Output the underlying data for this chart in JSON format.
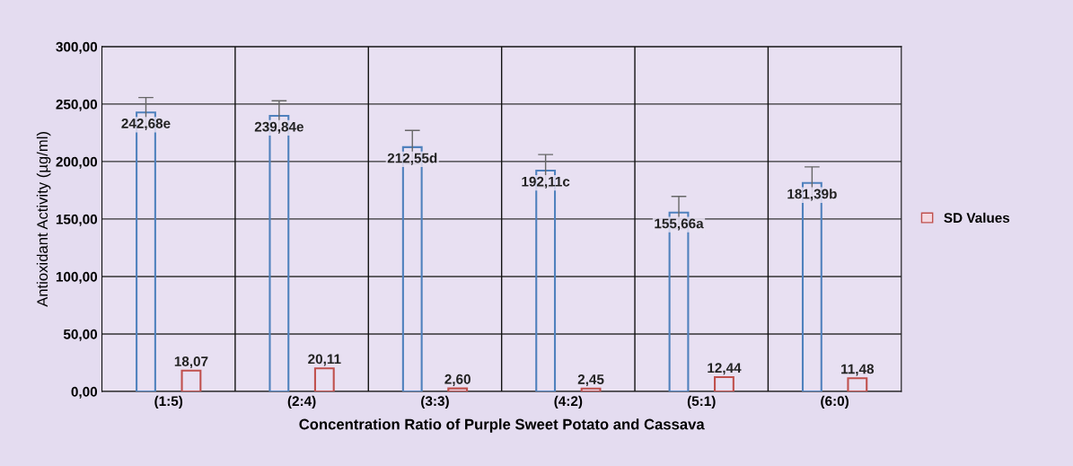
{
  "chart_data": {
    "type": "bar",
    "xlabel": "Concentration Ratio of Purple Sweet Potato and Cassava",
    "ylabel": "Antioxidant Activity (µg/ml)",
    "categories": [
      "(1:5)",
      "(2:4)",
      "(3:3)",
      "(4:2)",
      "(5:1)",
      "(6:0)"
    ],
    "series": [
      {
        "color": "#4f81bd",
        "values": [
          242.68,
          239.84,
          212.55,
          192.11,
          155.66,
          181.39
        ],
        "errors": [
          13,
          13,
          14.5,
          14,
          14,
          14
        ],
        "value_labels": [
          "242,68e",
          "239,84e",
          "212,55d",
          "192,11c",
          "155,66a",
          "181,39b"
        ]
      },
      {
        "name": "SD Values",
        "color": "#c0504d",
        "values": [
          18.07,
          20.11,
          2.6,
          2.45,
          12.44,
          11.48
        ],
        "value_labels": [
          "18,07",
          "20,11",
          "2,60",
          "2,45",
          "12,44",
          "11,48"
        ]
      }
    ],
    "ylim": [
      0,
      300
    ],
    "yticks": [
      {
        "value": 0,
        "label": "0,00"
      },
      {
        "value": 50,
        "label": "50,00"
      },
      {
        "value": 100,
        "label": "100,00"
      },
      {
        "value": 150,
        "label": "150,00"
      },
      {
        "value": 200,
        "label": "200,00"
      },
      {
        "value": 250,
        "label": "250,00"
      },
      {
        "value": 300,
        "label": "300,00"
      }
    ],
    "grid": true,
    "legend": "right"
  }
}
